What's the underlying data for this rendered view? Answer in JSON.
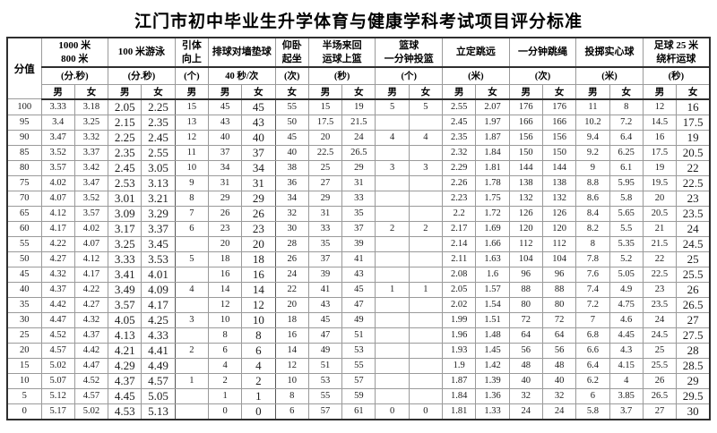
{
  "title": "江门市初中毕业生升学体育与健康学科考试项目评分标准",
  "table": {
    "score_header": "分值",
    "events": [
      {
        "key": "run-1000-800",
        "name_lines": [
          "1000 米",
          "800 米"
        ],
        "unit": "(分.秒)",
        "genders": [
          "男",
          "女"
        ]
      },
      {
        "key": "swim-100m",
        "name_lines": [
          "100 米游泳"
        ],
        "unit": "(分.秒)",
        "genders": [
          "男",
          "女"
        ]
      },
      {
        "key": "pull-ups",
        "name_lines": [
          "引体",
          "向上"
        ],
        "unit": "(个)",
        "genders": [
          "男"
        ]
      },
      {
        "key": "volleyball-wall-dig",
        "name_lines": [
          "排球对墙垫球"
        ],
        "unit": "40 秒/次",
        "genders": [
          "男",
          "女"
        ]
      },
      {
        "key": "sit-ups",
        "name_lines": [
          "仰卧",
          "起坐"
        ],
        "unit": "(次)",
        "genders": [
          "女"
        ]
      },
      {
        "key": "halfcourt-layup",
        "name_lines": [
          "半场来回",
          "运球上篮"
        ],
        "unit": "(秒)",
        "genders": [
          "男",
          "女"
        ]
      },
      {
        "key": "basketball-1min-shot",
        "name_lines": [
          "篮球",
          "一分钟投篮"
        ],
        "unit": "(个)",
        "genders": [
          "男",
          "女"
        ]
      },
      {
        "key": "standing-long-jump",
        "name_lines": [
          "立定跳远"
        ],
        "unit": "(米)",
        "genders": [
          "男",
          "女"
        ]
      },
      {
        "key": "rope-skip-1min",
        "name_lines": [
          "一分钟跳绳"
        ],
        "unit": "(次)",
        "genders": [
          "男",
          "女"
        ]
      },
      {
        "key": "solid-ball-throw",
        "name_lines": [
          "投掷实心球"
        ],
        "unit": "(米)",
        "genders": [
          "男",
          "女"
        ]
      },
      {
        "key": "football-25m-dribble",
        "name_lines": [
          "足球 25 米",
          "绕杆运球"
        ],
        "unit": "(秒)",
        "genders": [
          "男",
          "女"
        ]
      }
    ],
    "rows": [
      {
        "score": "100",
        "values": [
          "3.33",
          "3.18",
          "2.05",
          "2.25",
          "15",
          "45",
          "45",
          "55",
          "15",
          "19",
          "5",
          "5",
          "2.55",
          "2.07",
          "176",
          "176",
          "11",
          "8",
          "12",
          "16"
        ]
      },
      {
        "score": "95",
        "values": [
          "3.4",
          "3.25",
          "2.15",
          "2.35",
          "13",
          "43",
          "43",
          "50",
          "17.5",
          "21.5",
          "",
          "",
          "2.45",
          "1.97",
          "166",
          "166",
          "10.2",
          "7.2",
          "14.5",
          "17.5"
        ]
      },
      {
        "score": "90",
        "values": [
          "3.47",
          "3.32",
          "2.25",
          "2.45",
          "12",
          "40",
          "40",
          "45",
          "20",
          "24",
          "4",
          "4",
          "2.35",
          "1.87",
          "156",
          "156",
          "9.4",
          "6.4",
          "16",
          "19"
        ]
      },
      {
        "score": "85",
        "values": [
          "3.52",
          "3.37",
          "2.35",
          "2.55",
          "11",
          "37",
          "37",
          "40",
          "22.5",
          "26.5",
          "",
          "",
          "2.32",
          "1.84",
          "150",
          "150",
          "9.2",
          "6.25",
          "17.5",
          "20.5"
        ]
      },
      {
        "score": "80",
        "values": [
          "3.57",
          "3.42",
          "2.45",
          "3.05",
          "10",
          "34",
          "34",
          "38",
          "25",
          "29",
          "3",
          "3",
          "2.29",
          "1.81",
          "144",
          "144",
          "9",
          "6.1",
          "19",
          "22"
        ]
      },
      {
        "score": "75",
        "values": [
          "4.02",
          "3.47",
          "2.53",
          "3.13",
          "9",
          "31",
          "31",
          "36",
          "27",
          "31",
          "",
          "",
          "2.26",
          "1.78",
          "138",
          "138",
          "8.8",
          "5.95",
          "19.5",
          "22.5"
        ]
      },
      {
        "score": "70",
        "values": [
          "4.07",
          "3.52",
          "3.01",
          "3.21",
          "8",
          "29",
          "29",
          "34",
          "29",
          "33",
          "",
          "",
          "2.23",
          "1.75",
          "132",
          "132",
          "8.6",
          "5.8",
          "20",
          "23"
        ]
      },
      {
        "score": "65",
        "values": [
          "4.12",
          "3.57",
          "3.09",
          "3.29",
          "7",
          "26",
          "26",
          "32",
          "31",
          "35",
          "",
          "",
          "2.2",
          "1.72",
          "126",
          "126",
          "8.4",
          "5.65",
          "20.5",
          "23.5"
        ]
      },
      {
        "score": "60",
        "values": [
          "4.17",
          "4.02",
          "3.17",
          "3.37",
          "6",
          "23",
          "23",
          "30",
          "33",
          "37",
          "2",
          "2",
          "2.17",
          "1.69",
          "120",
          "120",
          "8.2",
          "5.5",
          "21",
          "24"
        ]
      },
      {
        "score": "55",
        "values": [
          "4.22",
          "4.07",
          "3.25",
          "3.45",
          "",
          "20",
          "20",
          "28",
          "35",
          "39",
          "",
          "",
          "2.14",
          "1.66",
          "112",
          "112",
          "8",
          "5.35",
          "21.5",
          "24.5"
        ]
      },
      {
        "score": "50",
        "values": [
          "4.27",
          "4.12",
          "3.33",
          "3.53",
          "5",
          "18",
          "18",
          "26",
          "37",
          "41",
          "",
          "",
          "2.11",
          "1.63",
          "104",
          "104",
          "7.8",
          "5.2",
          "22",
          "25"
        ]
      },
      {
        "score": "45",
        "values": [
          "4.32",
          "4.17",
          "3.41",
          "4.01",
          "",
          "16",
          "16",
          "24",
          "39",
          "43",
          "",
          "",
          "2.08",
          "1.6",
          "96",
          "96",
          "7.6",
          "5.05",
          "22.5",
          "25.5"
        ]
      },
      {
        "score": "40",
        "values": [
          "4.37",
          "4.22",
          "3.49",
          "4.09",
          "4",
          "14",
          "14",
          "22",
          "41",
          "45",
          "1",
          "1",
          "2.05",
          "1.57",
          "88",
          "88",
          "7.4",
          "4.9",
          "23",
          "26"
        ]
      },
      {
        "score": "35",
        "values": [
          "4.42",
          "4.27",
          "3.57",
          "4.17",
          "",
          "12",
          "12",
          "20",
          "43",
          "47",
          "",
          "",
          "2.02",
          "1.54",
          "80",
          "80",
          "7.2",
          "4.75",
          "23.5",
          "26.5"
        ]
      },
      {
        "score": "30",
        "values": [
          "4.47",
          "4.32",
          "4.05",
          "4.25",
          "3",
          "10",
          "10",
          "18",
          "45",
          "49",
          "",
          "",
          "1.99",
          "1.51",
          "72",
          "72",
          "7",
          "4.6",
          "24",
          "27"
        ]
      },
      {
        "score": "25",
        "values": [
          "4.52",
          "4.37",
          "4.13",
          "4.33",
          "",
          "8",
          "8",
          "16",
          "47",
          "51",
          "",
          "",
          "1.96",
          "1.48",
          "64",
          "64",
          "6.8",
          "4.45",
          "24.5",
          "27.5"
        ]
      },
      {
        "score": "20",
        "values": [
          "4.57",
          "4.42",
          "4.21",
          "4.41",
          "2",
          "6",
          "6",
          "14",
          "49",
          "53",
          "",
          "",
          "1.93",
          "1.45",
          "56",
          "56",
          "6.6",
          "4.3",
          "25",
          "28"
        ]
      },
      {
        "score": "15",
        "values": [
          "5.02",
          "4.47",
          "4.29",
          "4.49",
          "",
          "4",
          "4",
          "12",
          "51",
          "55",
          "",
          "",
          "1.9",
          "1.42",
          "48",
          "48",
          "6.4",
          "4.15",
          "25.5",
          "28.5"
        ]
      },
      {
        "score": "10",
        "values": [
          "5.07",
          "4.52",
          "4.37",
          "4.57",
          "1",
          "2",
          "2",
          "10",
          "53",
          "57",
          "",
          "",
          "1.87",
          "1.39",
          "40",
          "40",
          "6.2",
          "4",
          "26",
          "29"
        ]
      },
      {
        "score": "5",
        "values": [
          "5.12",
          "4.57",
          "4.45",
          "5.05",
          "",
          "1",
          "1",
          "8",
          "55",
          "59",
          "",
          "",
          "1.84",
          "1.36",
          "32",
          "32",
          "6",
          "3.85",
          "26.5",
          "29.5"
        ]
      },
      {
        "score": "0",
        "values": [
          "5.17",
          "5.02",
          "4.53",
          "5.13",
          "",
          "0",
          "0",
          "6",
          "57",
          "61",
          "0",
          "0",
          "1.81",
          "1.33",
          "24",
          "24",
          "5.8",
          "3.7",
          "27",
          "30"
        ]
      }
    ]
  }
}
